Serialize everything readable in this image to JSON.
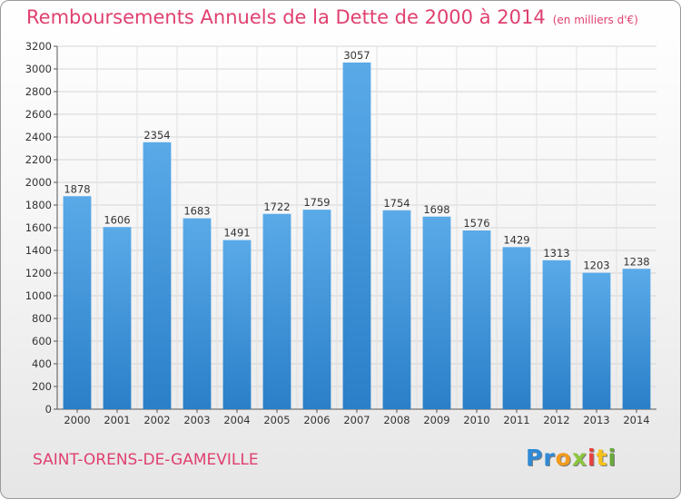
{
  "header": {
    "title": "Remboursements Annuels de la Dette de 2000 à 2014",
    "unit": "(en milliers d'€)"
  },
  "footer": {
    "city": "SAINT-ORENS-DE-GAMEVILLE",
    "logo_letters": [
      "P",
      "r",
      "o",
      "x",
      "i",
      "t",
      "i"
    ]
  },
  "colors": {
    "bar": "#3f95dd",
    "bar_dark": "#2a7fc8",
    "title": "#e0406f"
  },
  "chart_data": {
    "type": "bar",
    "title": "Remboursements Annuels de la Dette de 2000 à 2014",
    "xlabel": "",
    "ylabel": "",
    "categories": [
      "2000",
      "2001",
      "2002",
      "2003",
      "2004",
      "2005",
      "2006",
      "2007",
      "2008",
      "2009",
      "2010",
      "2011",
      "2012",
      "2013",
      "2014"
    ],
    "values": [
      1878,
      1606,
      2354,
      1683,
      1491,
      1722,
      1759,
      3057,
      1754,
      1698,
      1576,
      1429,
      1313,
      1203,
      1238
    ],
    "ylim": [
      0,
      3200
    ],
    "yticks": [
      0,
      200,
      400,
      600,
      800,
      1000,
      1200,
      1400,
      1600,
      1800,
      2000,
      2200,
      2400,
      2600,
      2800,
      3000,
      3200
    ],
    "grid": true,
    "legend": "none"
  }
}
